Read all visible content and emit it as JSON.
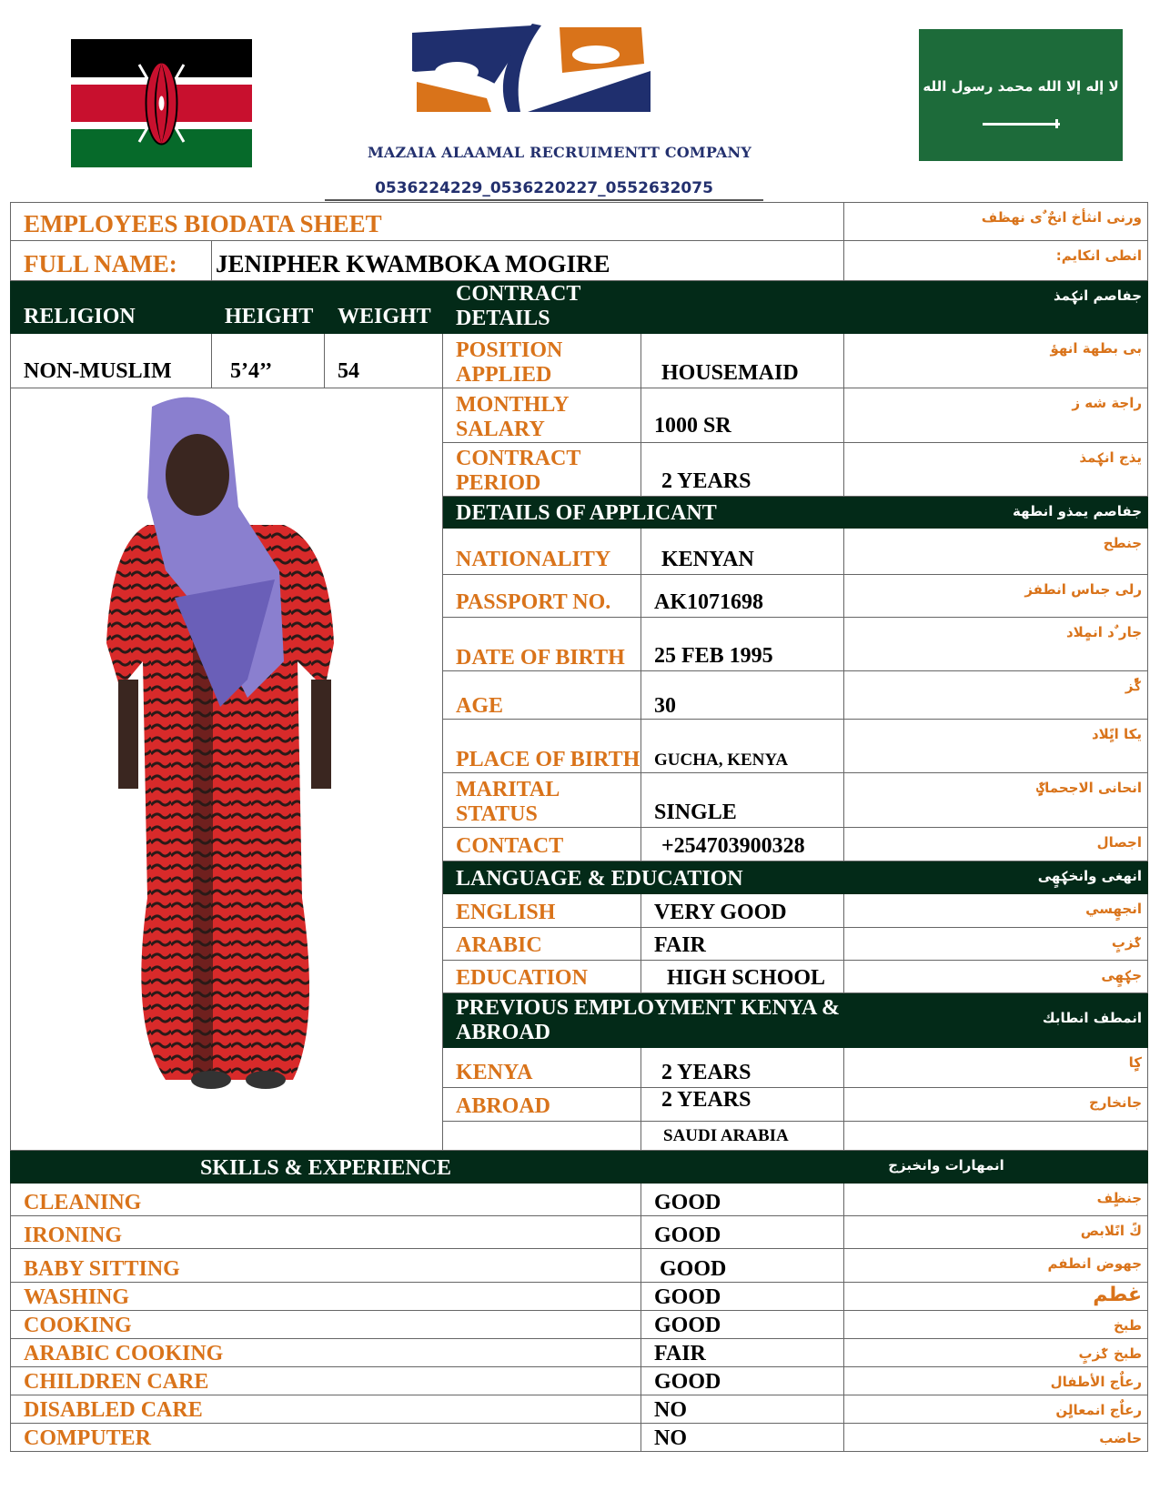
{
  "header": {
    "left_flag": "kenya-flag",
    "right_flag": "saudi-flag",
    "logo": "mazaia-logo",
    "company_name": "MAZAIA ALAAMAL RECRUIMENTT COMPANY",
    "phones": "0536224229_0536220227_0552632075",
    "saudi_flag_text": "لا إله إلا الله محمد رسول الله"
  },
  "colors": {
    "accent": "#d9731a",
    "header_bg": "#032a18",
    "brand_blue": "#23306e"
  },
  "sheet": {
    "title": "EMPLOYEES BIODATA SHEET",
    "title_ar": "ورنى انثأخ انحٌ ٌى نهظف",
    "full_name_label": "FULL NAME:",
    "full_name": "JENIPHER KWAMBOKA MOGIRE",
    "full_name_ar": "انطى انكايم:",
    "headers": {
      "religion": "RELIGION",
      "height": "HEIGHT",
      "weight": "WEIGHT",
      "contract_details": "CONTRACT DETAILS",
      "contract_details_ar": "جفاصم انؼمذ"
    },
    "religion": "NON-MUSLIM",
    "height": "5’4’’",
    "weight": "54",
    "contract": [
      {
        "label": "POSITION APPLIED",
        "value": "HOUSEMAID",
        "ar": "بى بطهة انهؤ"
      },
      {
        "label": "MONTHLY SALARY",
        "value": "1000 SR",
        "ar": "راجة شه ز"
      },
      {
        "label": "CONTRACT PERIOD",
        "value": "2 YEARS",
        "ar": "يذج انؼمذ"
      }
    ],
    "applicant_header": "DETAILS OF APPLICANT",
    "applicant_header_ar": "جفاصم يمذو انطهة",
    "applicant": [
      {
        "label": "NATIONALITY",
        "value": "KENYAN",
        "ar": "جنطح"
      },
      {
        "label": "PASSPORT NO.",
        "value": "AK1071698",
        "ar": "رلى جىاس انطفز"
      },
      {
        "label": "DATE OF BIRTH",
        "value": "25 FEB 1995",
        "ar": "جار ٌد انمٍلاد"
      },
      {
        "label": "AGE",
        "value": "30",
        "ar": "ػًز"
      },
      {
        "label": "PLACE OF BIRTH",
        "value": "GUCHA, KENYA",
        "ar": "يكا انًٍلاد"
      },
      {
        "label": "MARITAL STATUS",
        "value": "SINGLE",
        "ar": "انحانى الاجحماػٍ"
      },
      {
        "label": "CONTACT",
        "value": "+254703900328",
        "ar": "اجصال"
      }
    ],
    "language_header": "LANGUAGE & EDUCATION",
    "language_header_ar": "انهغى وانخؼهٍى",
    "language": [
      {
        "label": "ENGLISH",
        "value": "VERY GOOD",
        "ar": "انجهٍسي"
      },
      {
        "label": "ARABIC",
        "value": "FAIR",
        "ar": "ػزبٍ"
      },
      {
        "label": "EDUCATION",
        "value": "HIGH SCHOOL",
        "ar": "جؼهٍى"
      }
    ],
    "employment_header": "PREVIOUS EMPLOYMENT KENYA & ABROAD",
    "employment_header_ar": "انمطف انطابك",
    "employment": [
      {
        "label": "KENYA",
        "value": "2 YEARS",
        "ar": "كٍٍا"
      },
      {
        "label": "ABROAD",
        "value": "2 YEARS",
        "ar": "جانخارج"
      }
    ],
    "employment_country": "SAUDI ARABIA",
    "skills_header": "SKILLS & EXPERIENCE",
    "skills_header_ar": "انمهارات وانخبزج",
    "skills": [
      {
        "label": "CLEANING",
        "value": "GOOD",
        "ar": "جنظٍف"
      },
      {
        "label": "IRONING",
        "value": "GOOD",
        "ar": "كً انًلابص"
      },
      {
        "label": "BABY SITTING",
        "value": "GOOD",
        "ar": "جهوض انطفم"
      },
      {
        "label": "WASHING",
        "value": "GOOD",
        "ar": "غطم"
      },
      {
        "label": "COOKING",
        "value": "GOOD",
        "ar": "طبخ"
      },
      {
        "label": "ARABIC COOKING",
        "value": "FAIR",
        "ar": "طبخ ػزبٍ"
      },
      {
        "label": "CHILDREN CARE",
        "value": "GOOD",
        "ar": "رعاٌج الأطفال"
      },
      {
        "label": "DISABLED CARE",
        "value": "NO",
        "ar": "رعاٌج انمعالٍن"
      },
      {
        "label": "COMPUTER",
        "value": "NO",
        "ar": "حاضب"
      }
    ]
  },
  "photo": "applicant-photo"
}
